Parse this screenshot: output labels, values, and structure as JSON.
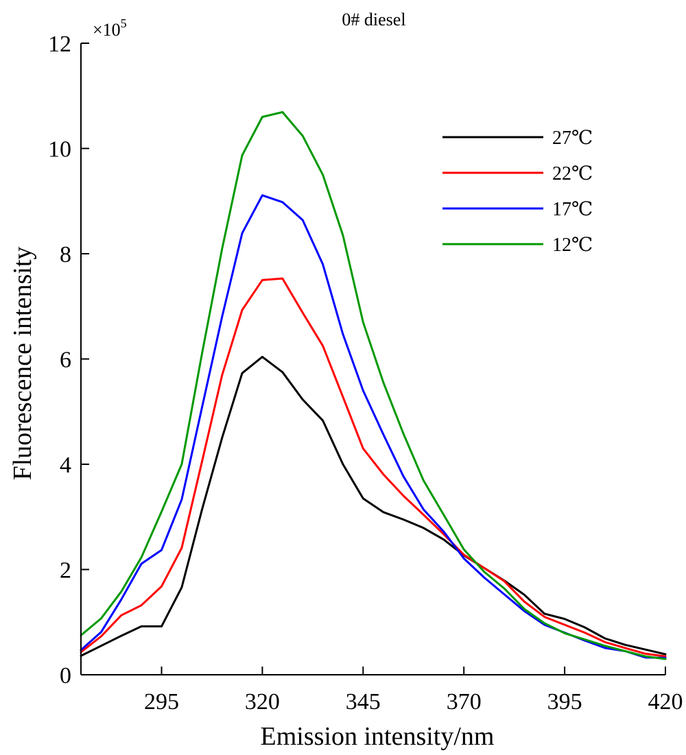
{
  "chart_data": {
    "type": "line",
    "title": "0# diesel",
    "xlabel": "Emission intensity/nm",
    "ylabel": "Fluorescence intensity",
    "y_scale_label": "×10",
    "y_scale_exponent": "5",
    "xlim": [
      275,
      420
    ],
    "ylim": [
      0,
      12
    ],
    "x_ticks": [
      295,
      320,
      345,
      370,
      395,
      420
    ],
    "x_tick_labels": [
      "295",
      "320",
      "345",
      "370",
      "395",
      "420"
    ],
    "y_ticks": [
      0,
      2,
      4,
      6,
      8,
      10,
      12
    ],
    "y_tick_labels": [
      "0",
      "2",
      "4",
      "6",
      "8",
      "10",
      "12"
    ],
    "grid": false,
    "legend_position": "top-right",
    "x": [
      275,
      280,
      285,
      290,
      295,
      300,
      305,
      310,
      315,
      320,
      325,
      330,
      335,
      340,
      345,
      350,
      355,
      360,
      365,
      370,
      375,
      380,
      385,
      390,
      395,
      400,
      405,
      410,
      415,
      420
    ],
    "series": [
      {
        "name": "27℃",
        "color": "#000000",
        "values": [
          0.36,
          0.55,
          0.74,
          0.92,
          0.92,
          1.66,
          3.13,
          4.5,
          5.73,
          6.04,
          5.75,
          5.23,
          4.83,
          4.0,
          3.35,
          3.09,
          2.95,
          2.79,
          2.57,
          2.27,
          2.03,
          1.79,
          1.52,
          1.16,
          1.06,
          0.9,
          0.69,
          0.57,
          0.48,
          0.39
        ]
      },
      {
        "name": "22℃",
        "color": "#ff0000",
        "values": [
          0.43,
          0.73,
          1.13,
          1.32,
          1.68,
          2.41,
          4.04,
          5.69,
          6.93,
          7.5,
          7.53,
          6.88,
          6.25,
          5.28,
          4.3,
          3.81,
          3.4,
          3.04,
          2.67,
          2.28,
          2.03,
          1.78,
          1.39,
          1.1,
          0.95,
          0.8,
          0.62,
          0.51,
          0.4,
          0.35
        ]
      },
      {
        "name": "17℃",
        "color": "#0000ff",
        "values": [
          0.47,
          0.81,
          1.43,
          2.11,
          2.37,
          3.33,
          5.07,
          6.8,
          8.39,
          9.11,
          8.98,
          8.64,
          7.8,
          6.47,
          5.4,
          4.57,
          3.77,
          3.14,
          2.72,
          2.21,
          1.85,
          1.53,
          1.21,
          0.95,
          0.8,
          0.65,
          0.51,
          0.45,
          0.33,
          0.32
        ]
      },
      {
        "name": "12℃",
        "color": "#009900",
        "values": [
          0.75,
          1.07,
          1.58,
          2.23,
          3.1,
          4.0,
          6.09,
          8.09,
          9.87,
          10.6,
          10.69,
          10.24,
          9.5,
          8.35,
          6.7,
          5.56,
          4.58,
          3.69,
          3.04,
          2.38,
          1.96,
          1.64,
          1.25,
          0.98,
          0.79,
          0.67,
          0.55,
          0.45,
          0.35,
          0.3
        ]
      }
    ]
  }
}
